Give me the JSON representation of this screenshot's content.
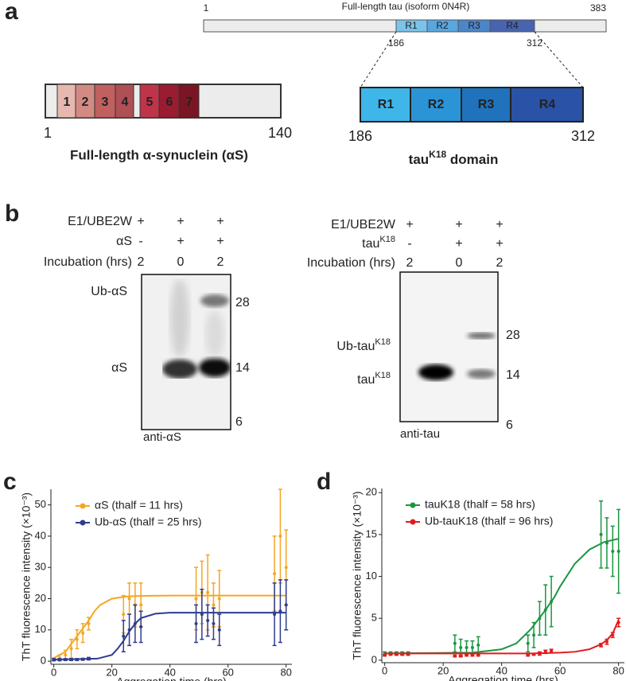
{
  "panel_a": {
    "label": "a",
    "tau": {
      "title": "Full-length tau (isoform 0N4R)",
      "start": "1",
      "end": "383",
      "repeats": [
        "R1",
        "R2",
        "R3",
        "R4"
      ],
      "repeat_start": "186",
      "repeat_end": "312"
    },
    "asyn": {
      "segments": [
        "1",
        "2",
        "3",
        "4",
        "5",
        "6",
        "7"
      ],
      "start": "1",
      "end": "140",
      "title": "Full-length α-synuclein (αS)"
    },
    "k18": {
      "repeats": [
        "R1",
        "R2",
        "R3",
        "R4"
      ],
      "start": "186",
      "end": "312",
      "title": {
        "base": "tau",
        "sup": "K18",
        "rest": " domain"
      }
    }
  },
  "panel_b": {
    "label": "b",
    "left": {
      "rows": [
        [
          "E1/UBE2W",
          "+",
          "+",
          "+"
        ],
        [
          "αS",
          "-",
          "+",
          "+"
        ],
        [
          "Incubation (hrs)",
          "2",
          "0",
          "2"
        ]
      ],
      "bands": [
        "Ub-αS",
        "αS"
      ],
      "markers": [
        "28",
        "14",
        "6"
      ],
      "antibody": "anti-αS"
    },
    "right": {
      "rows": [
        [
          "E1/UBE2W",
          "+",
          "+",
          "+"
        ],
        [
          {
            "base": "tau",
            "sup": "K18"
          },
          "-",
          "+",
          "+"
        ],
        [
          "Incubation (hrs)",
          "2",
          "0",
          "2"
        ]
      ],
      "bands": [
        {
          "base": "Ub-tau",
          "sup": "K18"
        },
        {
          "base": "tau",
          "sup": "K18"
        }
      ],
      "markers": [
        "28",
        "14",
        "6"
      ],
      "antibody": "anti-tau"
    }
  },
  "chart_data": [
    {
      "type": "line",
      "label": "c",
      "xlabel": "Aggregation time  (hrs)",
      "ylabel": "ThT fluorescence intensity (×10⁻³)",
      "xlim": [
        -1,
        82
      ],
      "ylim": [
        -1,
        55
      ],
      "xticks": [
        0,
        20,
        40,
        60,
        80
      ],
      "yticks": [
        0,
        10,
        20,
        30,
        40,
        50
      ],
      "series": [
        {
          "name": "αS (thalf = 11 hrs)",
          "color": "#f5a623",
          "x": [
            0,
            2,
            4,
            6,
            8,
            10,
            12,
            24,
            26,
            28,
            30,
            49,
            51,
            53,
            55,
            57,
            76,
            78,
            80
          ],
          "values": [
            0.5,
            1,
            2,
            4,
            7,
            9,
            12,
            15,
            20,
            18,
            18,
            20,
            22,
            22,
            18,
            20,
            28,
            40,
            30
          ],
          "errors": [
            0.5,
            1,
            1.5,
            3,
            3,
            3,
            2,
            6,
            5,
            7,
            7,
            10,
            10,
            12,
            7,
            9,
            12,
            15,
            12
          ],
          "fit": {
            "x": [
              0,
              4,
              8,
              10,
              12,
              14,
              16,
              20,
              25,
              30,
              40,
              60,
              80
            ],
            "values": [
              1,
              3,
              8,
              10.5,
              13,
              16,
              18,
              20,
              20.7,
              20.9,
              21,
              21,
              21
            ]
          }
        },
        {
          "name": "Ub-αS (thalf = 25 hrs)",
          "color": "#2e3d8f",
          "x": [
            0,
            2,
            4,
            6,
            8,
            10,
            12,
            24,
            26,
            28,
            30,
            49,
            51,
            53,
            55,
            57,
            76,
            78,
            80
          ],
          "values": [
            0.5,
            0.5,
            0.5,
            0.5,
            0.5,
            0.6,
            0.8,
            8,
            10,
            12,
            11,
            12,
            15,
            13,
            12,
            10,
            15,
            16,
            18
          ],
          "errors": [
            0.3,
            0.3,
            0.3,
            0.3,
            0.3,
            0.3,
            0.4,
            5,
            5,
            6,
            5,
            6,
            8,
            5,
            5,
            5,
            10,
            10,
            8
          ],
          "fit": {
            "x": [
              0,
              15,
              20,
              22,
              24,
              25,
              26,
              28,
              30,
              35,
              40,
              60,
              80
            ],
            "values": [
              0.5,
              0.8,
              2,
              4,
              6.5,
              8,
              9.5,
              12,
              13.8,
              15.2,
              15.5,
              15.5,
              15.5
            ]
          }
        }
      ]
    },
    {
      "type": "line",
      "label": "d",
      "xlabel": "Aggregation time  (hrs)",
      "ylabel": "ThT fluorescence intensity (×10⁻³)",
      "xlim": [
        -1,
        82
      ],
      "ylim": [
        -0.3,
        20.5
      ],
      "xticks": [
        0,
        20,
        40,
        60,
        80
      ],
      "yticks": [
        0,
        5,
        10,
        15,
        20
      ],
      "series": [
        {
          "name": "tauK18 (thalf = 58 hrs)",
          "color": "#1a9641",
          "x": [
            0,
            2,
            4,
            6,
            8,
            24,
            26,
            28,
            30,
            32,
            49,
            51,
            53,
            55,
            57,
            74,
            76,
            78,
            80
          ],
          "values": [
            0.8,
            0.8,
            0.8,
            0.8,
            0.8,
            2,
            1.5,
            1.5,
            1.5,
            1.8,
            2,
            3,
            5,
            6,
            7,
            15,
            14,
            13,
            13
          ],
          "errors": [
            0.2,
            0.2,
            0.2,
            0.2,
            0.2,
            1,
            1,
            0.8,
            0.8,
            1,
            1,
            1.5,
            2,
            3,
            3,
            4,
            3,
            3,
            5
          ],
          "fit": {
            "x": [
              0,
              30,
              40,
              45,
              50,
              55,
              58,
              60,
              65,
              70,
              75,
              80
            ],
            "values": [
              0.8,
              0.9,
              1.3,
              2,
              3.7,
              6,
              7.5,
              8.8,
              11.5,
              13.2,
              14.1,
              14.5
            ]
          }
        },
        {
          "name": "Ub-tauK18 (thalf = 96 hrs)",
          "color": "#e31a1c",
          "x": [
            0,
            2,
            4,
            6,
            8,
            24,
            26,
            28,
            30,
            32,
            49,
            51,
            53,
            55,
            57,
            74,
            76,
            78,
            80
          ],
          "values": [
            0.6,
            0.7,
            0.7,
            0.7,
            0.7,
            0.5,
            0.5,
            0.6,
            0.6,
            0.6,
            0.6,
            0.7,
            0.8,
            1,
            1.1,
            1.8,
            2.2,
            3,
            4.5
          ],
          "errors": [
            0.1,
            0.1,
            0.1,
            0.1,
            0.1,
            0.1,
            0.1,
            0.1,
            0.1,
            0.1,
            0.1,
            0.1,
            0.2,
            0.2,
            0.2,
            0.2,
            0.3,
            0.3,
            0.5
          ],
          "fit": {
            "x": [
              0,
              50,
              60,
              65,
              70,
              74,
              76,
              78,
              80
            ],
            "values": [
              0.8,
              0.8,
              0.9,
              1,
              1.3,
              1.9,
              2.4,
              3.2,
              4.8
            ]
          }
        }
      ]
    }
  ]
}
